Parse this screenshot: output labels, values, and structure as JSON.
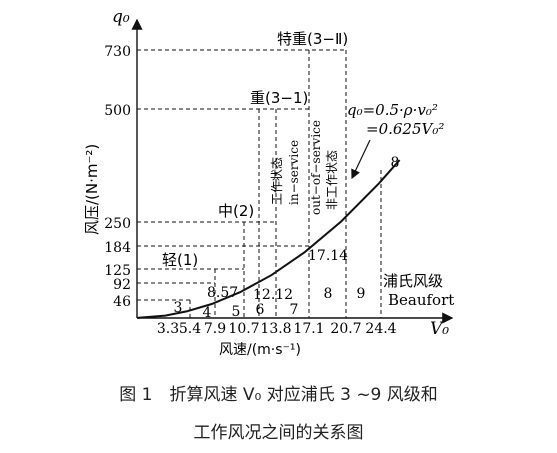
{
  "chart_data": {
    "type": "line",
    "y_axis_label": "q₀",
    "y_title": "风压/(N·m⁻²)",
    "x_axis_label": "V₀",
    "x_title": "风速/(m·s⁻¹)",
    "y_ticks": [
      "730",
      "500",
      "250",
      "184",
      "125",
      "92",
      "46"
    ],
    "x_ticks": [
      "3.3",
      "5.4",
      "7.9",
      "10.7",
      "13.8",
      "17.1",
      "20.7",
      "24.4"
    ],
    "formula_line1": "q₀=0.5·ρ·v₀²",
    "formula_line2": "=0.625V₀²",
    "categories": [
      {
        "label": "轻(1)",
        "speed": 7.9,
        "pressure": 46
      },
      {
        "label": "中(2)",
        "speed": 13.8,
        "pressure": 250
      },
      {
        "label": "重(3−1)",
        "speed": 17.1,
        "pressure": 500
      },
      {
        "label": "特重(3−Ⅱ)",
        "speed": 20.7,
        "pressure": 730
      }
    ],
    "in_service_label_cn": "工作状态",
    "in_service_label_en": "in−service",
    "out_service_label_en": "out−of−service",
    "out_service_label_cn": "非工作状态",
    "beaufort_title_cn": "浦氏风级",
    "beaufort_title_en": "Beaufort",
    "beaufort_grades": [
      "3",
      "4",
      "5",
      "6",
      "7",
      "8",
      "9",
      "8"
    ],
    "point_labels": [
      "8.57",
      "12.12",
      "17.14"
    ],
    "curve": {
      "x": [
        3.3,
        5.4,
        7.9,
        10.7,
        13.8,
        17.1,
        20.7,
        24.4
      ],
      "y": [
        6.8,
        18.2,
        39,
        71.6,
        119,
        182.8,
        267.8,
        372.1
      ]
    }
  },
  "caption": {
    "line1": "图 1　折算风速 V₀ 对应浦氏 3 ~9 风级和",
    "line2": "工作风况之间的关系图"
  }
}
